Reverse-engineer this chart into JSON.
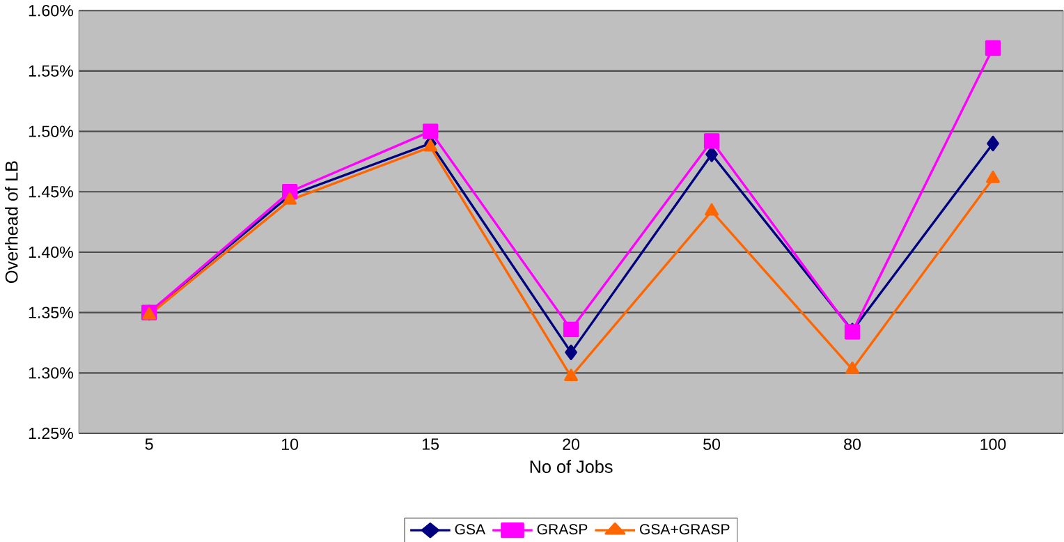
{
  "chart_data": {
    "type": "line",
    "xlabel": "No of Jobs",
    "ylabel": "Overhead of LB",
    "categories": [
      "5",
      "10",
      "15",
      "20",
      "50",
      "80",
      "100"
    ],
    "series": [
      {
        "name": "GSA",
        "color": "#000080",
        "marker": "diamond",
        "values": [
          1.35,
          1.447,
          1.49,
          1.317,
          1.481,
          1.335,
          1.49
        ]
      },
      {
        "name": "GRASP",
        "color": "#ff00ff",
        "marker": "square",
        "values": [
          1.35,
          1.45,
          1.5,
          1.336,
          1.492,
          1.334,
          1.569
        ]
      },
      {
        "name": "GSA+GRASP",
        "color": "#ff6600",
        "marker": "triangle",
        "values": [
          1.348,
          1.443,
          1.487,
          1.297,
          1.434,
          1.303,
          1.461
        ]
      }
    ],
    "ylim": [
      1.25,
      1.6
    ],
    "yticks": [
      {
        "value": 1.25,
        "label": "1.25%"
      },
      {
        "value": 1.3,
        "label": "1.30%"
      },
      {
        "value": 1.35,
        "label": "1.35%"
      },
      {
        "value": 1.4,
        "label": "1.40%"
      },
      {
        "value": 1.45,
        "label": "1.45%"
      },
      {
        "value": 1.5,
        "label": "1.50%"
      },
      {
        "value": 1.55,
        "label": "1.55%"
      },
      {
        "value": 1.6,
        "label": "1.60%"
      }
    ],
    "grid": "y",
    "legend": "bottom"
  }
}
